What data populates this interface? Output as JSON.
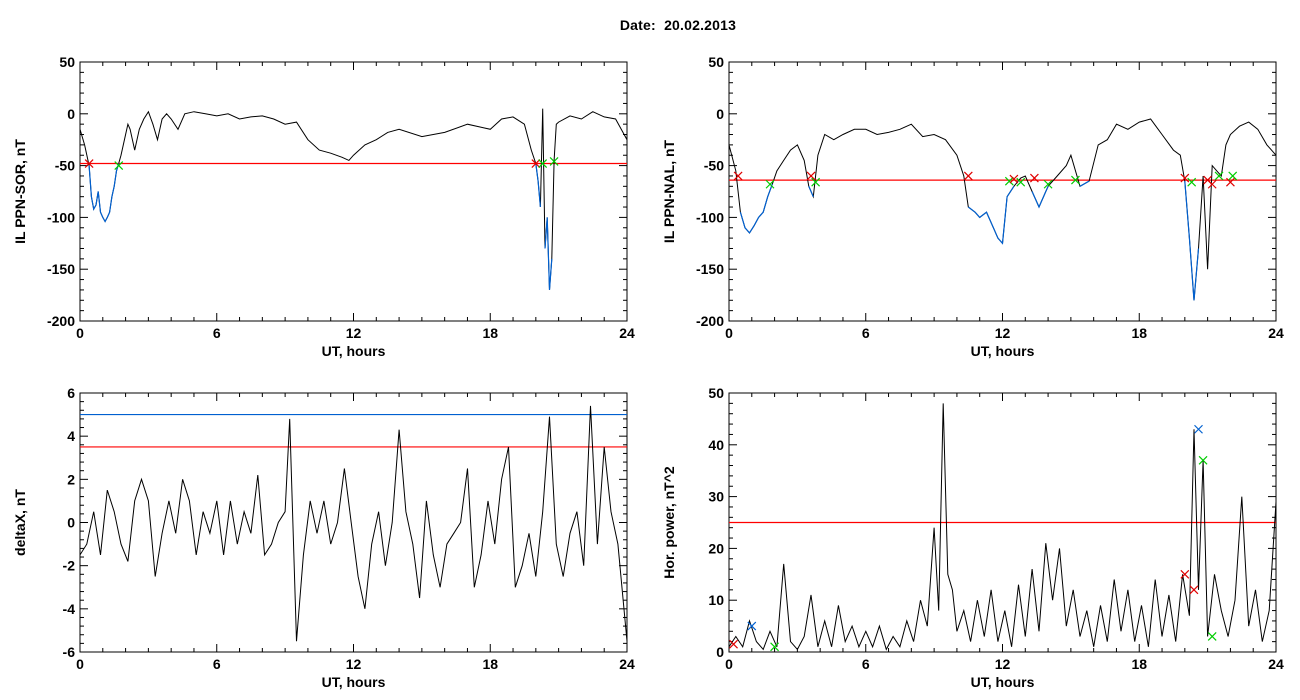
{
  "header": {
    "date_label": "Date:",
    "date_value": "20.02.2013"
  },
  "colors": {
    "frame": "#000000",
    "data": "#000000",
    "threshold_red": "#ff0000",
    "threshold_blue": "#0060d0",
    "highlight_blue": "#0060d0",
    "marker_red": "#e00000",
    "marker_green": "#00cc00",
    "marker_blue": "#0060d0"
  },
  "chart_data": [
    {
      "type": "line",
      "xlabel": "UT, hours",
      "ylabel": "IL PPN-SOR, nT",
      "xlim": [
        0,
        24
      ],
      "ylim": [
        -200,
        50
      ],
      "xticks": [
        0,
        6,
        12,
        18,
        24
      ],
      "yticks": [
        50,
        0,
        -50,
        -100,
        -150,
        -200
      ],
      "threshold": {
        "value": -48,
        "color": "red"
      },
      "series": [
        {
          "x": [
            0,
            0.2,
            0.4,
            0.5,
            0.6,
            0.7,
            0.8,
            0.9,
            1.0,
            1.1,
            1.2,
            1.3,
            1.4,
            1.5,
            1.6,
            1.7,
            1.8,
            1.9,
            2.0,
            2.1,
            2.2,
            2.4,
            2.6,
            2.8,
            3.0,
            3.2,
            3.4,
            3.6,
            3.8,
            4.0,
            4.3,
            4.6,
            5.0,
            5.5,
            6.0,
            6.5,
            7.0,
            7.5,
            8.0,
            8.5,
            9.0,
            9.5,
            10.0,
            10.5,
            11.0,
            11.5,
            11.8,
            12.0,
            12.5,
            13.0,
            13.5,
            14.0,
            15.0,
            16.0,
            17.0,
            18.0,
            18.5,
            19.0,
            19.5,
            19.8,
            20.0,
            20.1,
            20.2,
            20.3,
            20.4,
            20.5,
            20.6,
            20.7,
            20.8,
            20.9,
            21.0,
            21.5,
            22.0,
            22.5,
            23.0,
            23.5,
            24.0
          ],
          "y": [
            -15,
            -30,
            -50,
            -80,
            -92,
            -88,
            -75,
            -95,
            -100,
            -104,
            -100,
            -95,
            -80,
            -70,
            -55,
            -48,
            -40,
            -30,
            -20,
            -10,
            -15,
            -35,
            -15,
            -5,
            2,
            -10,
            -25,
            -5,
            0,
            -5,
            -15,
            0,
            2,
            0,
            -2,
            0,
            -5,
            -3,
            -2,
            -5,
            -10,
            -8,
            -25,
            -35,
            -38,
            -42,
            -45,
            -40,
            -30,
            -25,
            -18,
            -15,
            -22,
            -18,
            -10,
            -15,
            -5,
            -3,
            -10,
            -35,
            -48,
            -65,
            -90,
            5,
            -130,
            -100,
            -170,
            -140,
            -45,
            -10,
            -8,
            -2,
            -5,
            2,
            -3,
            -5,
            -25
          ]
        }
      ],
      "markers": [
        {
          "x": 0.4,
          "y": -48,
          "color": "red"
        },
        {
          "x": 1.7,
          "y": -50,
          "color": "green"
        },
        {
          "x": 20.0,
          "y": -48,
          "color": "red"
        },
        {
          "x": 20.3,
          "y": -48,
          "color": "green"
        },
        {
          "x": 20.8,
          "y": -46,
          "color": "green"
        }
      ]
    },
    {
      "type": "line",
      "xlabel": "UT, hours",
      "ylabel": "IL PPN-NAL, nT",
      "xlim": [
        0,
        24
      ],
      "ylim": [
        -200,
        50
      ],
      "xticks": [
        0,
        6,
        12,
        18,
        24
      ],
      "yticks": [
        50,
        0,
        -50,
        -100,
        -150,
        -200
      ],
      "threshold": {
        "value": -64,
        "color": "red"
      },
      "series": [
        {
          "x": [
            0,
            0.3,
            0.5,
            0.7,
            0.9,
            1.1,
            1.3,
            1.5,
            1.7,
            1.9,
            2.1,
            2.4,
            2.7,
            3.0,
            3.3,
            3.5,
            3.7,
            3.9,
            4.2,
            4.6,
            5.0,
            5.5,
            6.0,
            6.5,
            7.0,
            7.5,
            8.0,
            8.5,
            9.0,
            9.5,
            10.0,
            10.3,
            10.5,
            10.8,
            11.0,
            11.3,
            11.6,
            11.8,
            12.0,
            12.2,
            12.5,
            12.8,
            13.0,
            13.3,
            13.6,
            14.0,
            14.4,
            14.8,
            15.0,
            15.4,
            15.8,
            16.2,
            16.6,
            17.0,
            17.5,
            18.0,
            18.5,
            19.0,
            19.5,
            19.8,
            20.0,
            20.2,
            20.4,
            20.6,
            20.8,
            21.0,
            21.2,
            21.4,
            21.6,
            21.8,
            22.0,
            22.4,
            22.8,
            23.2,
            23.6,
            24.0
          ],
          "y": [
            -30,
            -55,
            -95,
            -110,
            -115,
            -108,
            -100,
            -95,
            -80,
            -68,
            -55,
            -45,
            -35,
            -30,
            -45,
            -70,
            -80,
            -40,
            -20,
            -25,
            -20,
            -15,
            -15,
            -20,
            -18,
            -15,
            -10,
            -22,
            -20,
            -25,
            -40,
            -60,
            -90,
            -95,
            -100,
            -95,
            -110,
            -120,
            -125,
            -80,
            -70,
            -62,
            -60,
            -75,
            -90,
            -70,
            -60,
            -50,
            -40,
            -70,
            -65,
            -30,
            -25,
            -10,
            -15,
            -8,
            -5,
            -20,
            -35,
            -40,
            -65,
            -120,
            -180,
            -130,
            -60,
            -150,
            -50,
            -55,
            -60,
            -30,
            -20,
            -12,
            -8,
            -15,
            -30,
            -40
          ]
        }
      ],
      "markers": [
        {
          "x": 0.4,
          "y": -60,
          "color": "red"
        },
        {
          "x": 1.8,
          "y": -68,
          "color": "green"
        },
        {
          "x": 3.6,
          "y": -60,
          "color": "red"
        },
        {
          "x": 3.8,
          "y": -66,
          "color": "green"
        },
        {
          "x": 10.5,
          "y": -60,
          "color": "red"
        },
        {
          "x": 12.3,
          "y": -65,
          "color": "green"
        },
        {
          "x": 12.5,
          "y": -63,
          "color": "red"
        },
        {
          "x": 12.8,
          "y": -66,
          "color": "green"
        },
        {
          "x": 13.4,
          "y": -62,
          "color": "red"
        },
        {
          "x": 14.0,
          "y": -68,
          "color": "green"
        },
        {
          "x": 15.2,
          "y": -64,
          "color": "green"
        },
        {
          "x": 20.0,
          "y": -62,
          "color": "red"
        },
        {
          "x": 20.3,
          "y": -66,
          "color": "green"
        },
        {
          "x": 21.0,
          "y": -64,
          "color": "red"
        },
        {
          "x": 21.2,
          "y": -68,
          "color": "red"
        },
        {
          "x": 21.5,
          "y": -60,
          "color": "green"
        },
        {
          "x": 22.0,
          "y": -66,
          "color": "red"
        },
        {
          "x": 22.1,
          "y": -60,
          "color": "green"
        }
      ]
    },
    {
      "type": "line",
      "xlabel": "UT, hours",
      "ylabel": "deltaX, nT",
      "xlim": [
        0,
        24
      ],
      "ylim": [
        -6,
        6
      ],
      "xticks": [
        0,
        6,
        12,
        18,
        24
      ],
      "yticks": [
        6,
        4,
        2,
        0,
        -2,
        -4,
        -6
      ],
      "thresholds": [
        {
          "value": 5.0,
          "color": "blue"
        },
        {
          "value": 3.5,
          "color": "red"
        }
      ],
      "series": [
        {
          "x": [
            0,
            0.3,
            0.6,
            0.9,
            1.2,
            1.5,
            1.8,
            2.1,
            2.4,
            2.7,
            3.0,
            3.3,
            3.6,
            3.9,
            4.2,
            4.5,
            4.8,
            5.1,
            5.4,
            5.7,
            6.0,
            6.3,
            6.6,
            6.9,
            7.2,
            7.5,
            7.8,
            8.1,
            8.4,
            8.7,
            9.0,
            9.2,
            9.5,
            9.8,
            10.1,
            10.4,
            10.7,
            11.0,
            11.3,
            11.6,
            11.9,
            12.2,
            12.5,
            12.8,
            13.1,
            13.4,
            13.7,
            14.0,
            14.3,
            14.6,
            14.9,
            15.2,
            15.5,
            15.8,
            16.1,
            16.4,
            16.7,
            17.0,
            17.3,
            17.6,
            17.9,
            18.2,
            18.5,
            18.8,
            19.1,
            19.4,
            19.7,
            20.0,
            20.3,
            20.6,
            20.9,
            21.2,
            21.5,
            21.8,
            22.1,
            22.4,
            22.7,
            23.0,
            23.3,
            23.6,
            24.0
          ],
          "y": [
            -1.5,
            -1,
            0.5,
            -1.5,
            1.5,
            0.5,
            -1,
            -1.8,
            1,
            2,
            1,
            -2.5,
            -0.5,
            1,
            -0.5,
            2,
            1,
            -1.5,
            0.5,
            -0.5,
            1,
            -1.5,
            1,
            -1,
            0.5,
            -0.5,
            2.2,
            -1.5,
            -1,
            0,
            0.5,
            4.8,
            -5.5,
            -1.5,
            1,
            -0.5,
            1,
            -1,
            0,
            2.5,
            0,
            -2.5,
            -4,
            -1,
            0.5,
            -2,
            0,
            4.3,
            0.5,
            -1,
            -3.5,
            1,
            -1.5,
            -3,
            -1,
            -0.5,
            0,
            2.5,
            -3,
            -1.5,
            1,
            -1,
            2,
            3.5,
            -3,
            -2,
            -0.5,
            -2.5,
            0.5,
            4.9,
            -1,
            -2.5,
            -0.5,
            0.5,
            -2,
            5.4,
            -1,
            3.5,
            0.5,
            -1,
            -5.5
          ]
        }
      ]
    },
    {
      "type": "line",
      "xlabel": "UT, hours",
      "ylabel": "Hor. power, nT^2",
      "xlim": [
        0,
        24
      ],
      "ylim": [
        0,
        50
      ],
      "xticks": [
        0,
        6,
        12,
        18,
        24
      ],
      "yticks": [
        50,
        40,
        30,
        20,
        10,
        0
      ],
      "threshold": {
        "value": 25,
        "color": "red"
      },
      "series": [
        {
          "x": [
            0,
            0.3,
            0.6,
            0.9,
            1.2,
            1.5,
            1.8,
            2.1,
            2.4,
            2.7,
            3.0,
            3.3,
            3.6,
            3.9,
            4.2,
            4.5,
            4.8,
            5.1,
            5.4,
            5.7,
            6.0,
            6.3,
            6.6,
            6.9,
            7.2,
            7.5,
            7.8,
            8.1,
            8.4,
            8.7,
            9.0,
            9.2,
            9.4,
            9.6,
            9.8,
            10.0,
            10.3,
            10.6,
            10.9,
            11.2,
            11.5,
            11.8,
            12.1,
            12.4,
            12.7,
            13.0,
            13.3,
            13.6,
            13.9,
            14.2,
            14.5,
            14.8,
            15.1,
            15.4,
            15.7,
            16.0,
            16.3,
            16.6,
            16.9,
            17.2,
            17.5,
            17.8,
            18.1,
            18.4,
            18.7,
            19.0,
            19.3,
            19.6,
            19.9,
            20.2,
            20.4,
            20.6,
            20.8,
            21.0,
            21.3,
            21.6,
            21.9,
            22.2,
            22.5,
            22.8,
            23.1,
            23.4,
            23.7,
            24.0
          ],
          "y": [
            1,
            3,
            1,
            6,
            2,
            0.5,
            4,
            1,
            17,
            2,
            0.5,
            3,
            11,
            1,
            6,
            1,
            9,
            2,
            5,
            1,
            4,
            1,
            5,
            0.5,
            3,
            1,
            6,
            2,
            10,
            5,
            24,
            8,
            48,
            15,
            12,
            4,
            8,
            2,
            10,
            3,
            12,
            2,
            8,
            1,
            13,
            3,
            16,
            4,
            21,
            10,
            20,
            5,
            12,
            3,
            8,
            1,
            9,
            2,
            14,
            4,
            12,
            2,
            9,
            1,
            14,
            3,
            11,
            2,
            15,
            7,
            43,
            12,
            37,
            3,
            15,
            8,
            3,
            10,
            30,
            5,
            12,
            2,
            8,
            29
          ]
        }
      ],
      "markers": [
        {
          "x": 0.2,
          "y": 1.5,
          "color": "red"
        },
        {
          "x": 1.0,
          "y": 5,
          "color": "blue"
        },
        {
          "x": 2.0,
          "y": 1,
          "color": "green"
        },
        {
          "x": 20.0,
          "y": 15,
          "color": "red"
        },
        {
          "x": 20.4,
          "y": 12,
          "color": "red"
        },
        {
          "x": 20.6,
          "y": 43,
          "color": "blue"
        },
        {
          "x": 20.8,
          "y": 37,
          "color": "green"
        },
        {
          "x": 21.2,
          "y": 3,
          "color": "green"
        }
      ]
    }
  ]
}
